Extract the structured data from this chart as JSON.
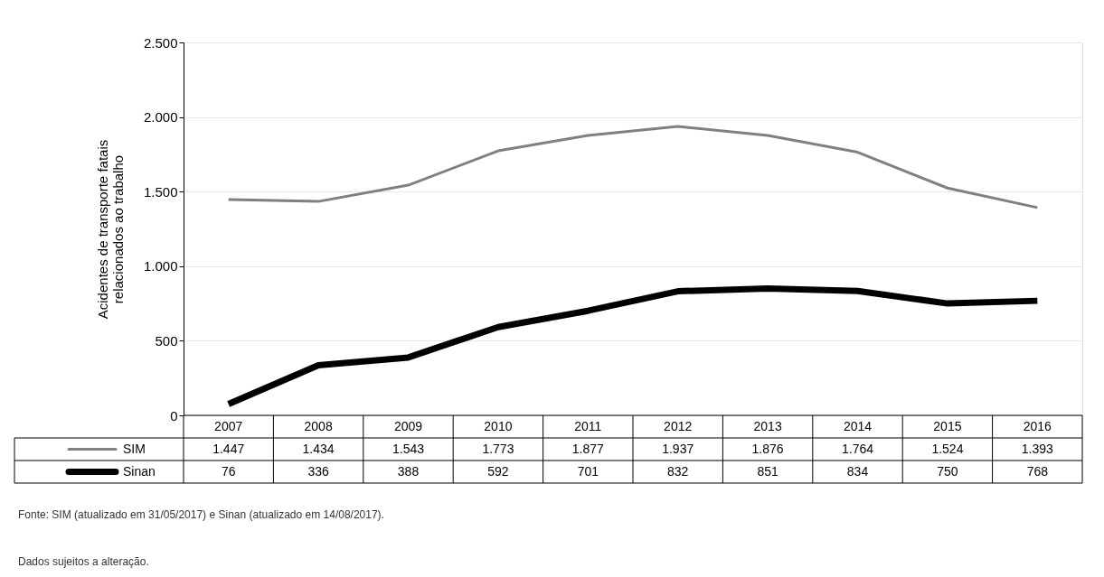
{
  "chart_data": {
    "type": "line",
    "ylabel": "Acidentes de transporte fatais\nrelacionados ao trabalho",
    "categories": [
      "2007",
      "2008",
      "2009",
      "2010",
      "2011",
      "2012",
      "2013",
      "2014",
      "2015",
      "2016"
    ],
    "series": [
      {
        "name": "SIM",
        "color": "#808080",
        "values": [
          1447,
          1434,
          1543,
          1773,
          1877,
          1937,
          1876,
          1764,
          1524,
          1393
        ],
        "value_labels": [
          "1.447",
          "1.434",
          "1.543",
          "1.773",
          "1.877",
          "1.937",
          "1.876",
          "1.764",
          "1.524",
          "1.393"
        ]
      },
      {
        "name": "Sinan",
        "color": "#000000",
        "values": [
          76,
          336,
          388,
          592,
          701,
          832,
          851,
          834,
          750,
          768
        ],
        "value_labels": [
          "76",
          "336",
          "388",
          "592",
          "701",
          "832",
          "851",
          "834",
          "750",
          "768"
        ]
      }
    ],
    "ylim": [
      0,
      2500
    ],
    "yticks": [
      {
        "value": 0,
        "label": "0"
      },
      {
        "value": 500,
        "label": "500"
      },
      {
        "value": 1000,
        "label": "1.000"
      },
      {
        "value": 1500,
        "label": "1.500"
      },
      {
        "value": 2000,
        "label": "2.000"
      },
      {
        "value": 2500,
        "label": "2.500"
      }
    ],
    "grid": "y",
    "legend": "bottom",
    "marker": "none",
    "line_style": "solid",
    "annotations": [
      "Fonte: SIM (atualizado em 31/05/2017) e Sinan (atualizado em 14/08/2017).",
      "Dados sujeitos a alteração."
    ]
  }
}
